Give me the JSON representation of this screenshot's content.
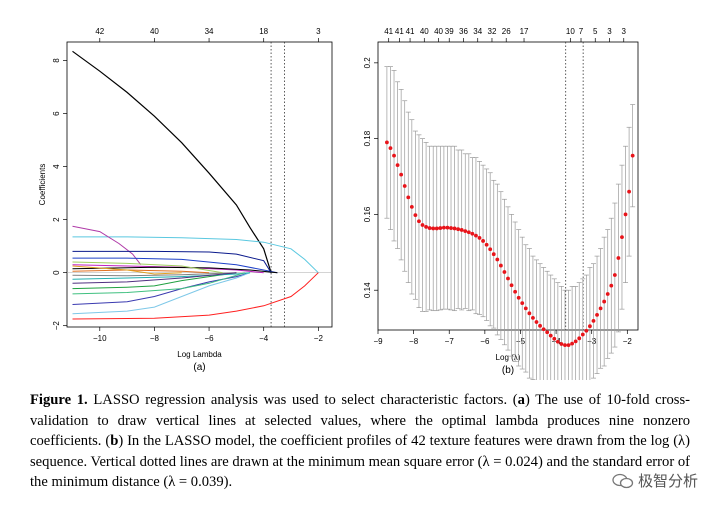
{
  "panel_a": {
    "letter": "(a)",
    "top_axis_ticks": [
      "42",
      "40",
      "34",
      "18",
      "3"
    ]
  },
  "panel_b": {
    "letter": "(b)",
    "top_axis_ticks": [
      "41",
      "41",
      "41",
      "40",
      "40",
      "39",
      "36",
      "34",
      "32",
      "26",
      "17",
      "10",
      "7",
      "5",
      "3",
      "3"
    ]
  },
  "chart_data": [
    {
      "type": "line",
      "xlabel": "Log Lambda",
      "ylabel": "Coefficients",
      "xlim": [
        -11.2,
        -1.5
      ],
      "ylim": [
        -2.05,
        8.7
      ],
      "xticks": [
        -10,
        -8,
        -6,
        -4,
        -2
      ],
      "yticks": [
        -2,
        0,
        2,
        4,
        6,
        8
      ],
      "top_axis_positions": [
        -10,
        -8,
        -6,
        -4,
        -2
      ],
      "vlines": [
        -3.73,
        -3.24
      ],
      "grid": false,
      "series": [
        {
          "color": "#000000",
          "points": [
            [
              -11,
              8.35
            ],
            [
              -10,
              7.6
            ],
            [
              -9,
              6.8
            ],
            [
              -8,
              5.9
            ],
            [
              -7,
              4.9
            ],
            [
              -6,
              3.75
            ],
            [
              -5,
              2.55
            ],
            [
              -4.5,
              1.7
            ],
            [
              -4,
              0.9
            ],
            [
              -3.73,
              0
            ]
          ]
        },
        {
          "color": "#5ac8e0",
          "points": [
            [
              -11,
              1.35
            ],
            [
              -9,
              1.35
            ],
            [
              -7,
              1.32
            ],
            [
              -5,
              1.25
            ],
            [
              -4,
              1.15
            ],
            [
              -3,
              0.9
            ],
            [
              -2.5,
              0.5
            ],
            [
              -2,
              0
            ]
          ]
        },
        {
          "color": "#b03aa8",
          "points": [
            [
              -11,
              1.75
            ],
            [
              -10,
              1.55
            ],
            [
              -9.3,
              1.1
            ],
            [
              -8.8,
              0.7
            ],
            [
              -8.5,
              0.3
            ]
          ]
        },
        {
          "color": "#0b1a8c",
          "points": [
            [
              -11,
              0.8
            ],
            [
              -8,
              0.8
            ],
            [
              -6,
              0.78
            ],
            [
              -5,
              0.7
            ],
            [
              -4,
              0.45
            ],
            [
              -3.73,
              0
            ]
          ]
        },
        {
          "color": "#ff2020",
          "points": [
            [
              -11,
              -1.75
            ],
            [
              -8,
              -1.72
            ],
            [
              -6,
              -1.6
            ],
            [
              -5,
              -1.45
            ],
            [
              -4,
              -1.25
            ],
            [
              -3,
              -0.9
            ],
            [
              -2.5,
              -0.5
            ],
            [
              -2,
              0
            ]
          ]
        },
        {
          "color": "#3a3ab0",
          "points": [
            [
              -11,
              -1.2
            ],
            [
              -9,
              -1.1
            ],
            [
              -8,
              -0.9
            ],
            [
              -7,
              -0.6
            ],
            [
              -6,
              -0.35
            ],
            [
              -5,
              -0.15
            ],
            [
              -4.5,
              0
            ]
          ]
        },
        {
          "color": "#7ec8e8",
          "points": [
            [
              -11,
              -1.55
            ],
            [
              -9,
              -1.45
            ],
            [
              -8,
              -1.3
            ],
            [
              -7,
              -0.9
            ],
            [
              -6,
              -0.5
            ],
            [
              -5,
              -0.2
            ],
            [
              -4.5,
              0
            ]
          ]
        },
        {
          "color": "#20a040",
          "points": [
            [
              -11,
              -0.6
            ],
            [
              -9,
              -0.55
            ],
            [
              -8,
              -0.5
            ],
            [
              -7,
              -0.3
            ],
            [
              -6,
              -0.15
            ],
            [
              -5,
              0
            ]
          ]
        },
        {
          "color": "#1e40c8",
          "points": [
            [
              -11,
              0.55
            ],
            [
              -9,
              0.55
            ],
            [
              -7,
              0.5
            ],
            [
              -5,
              0.3
            ],
            [
              -4,
              0.1
            ],
            [
              -3.5,
              0
            ]
          ]
        },
        {
          "color": "#c020c0",
          "points": [
            [
              -11,
              0.3
            ],
            [
              -9,
              0.25
            ],
            [
              -7,
              0.2
            ],
            [
              -5,
              0.1
            ],
            [
              -4,
              0
            ]
          ]
        },
        {
          "color": "#000000",
          "points": [
            [
              -11,
              0.15
            ],
            [
              -8,
              0.2
            ],
            [
              -6,
              0.18
            ],
            [
              -4.5,
              0.1
            ],
            [
              -3.5,
              0
            ]
          ]
        },
        {
          "color": "#20b0b0",
          "points": [
            [
              -11,
              -0.25
            ],
            [
              -9,
              -0.2
            ],
            [
              -7,
              -0.15
            ],
            [
              -5,
              -0.05
            ],
            [
              -4.5,
              0
            ]
          ]
        },
        {
          "color": "#e07020",
          "points": [
            [
              -11,
              0.05
            ],
            [
              -9,
              0.1
            ],
            [
              -7,
              0.05
            ],
            [
              -6,
              0
            ]
          ]
        },
        {
          "color": "#808080",
          "points": [
            [
              -11,
              -0.1
            ],
            [
              -9,
              -0.12
            ],
            [
              -7,
              -0.08
            ],
            [
              -5,
              0
            ]
          ]
        },
        {
          "color": "#a0d060",
          "points": [
            [
              -11,
              0.4
            ],
            [
              -9,
              0.35
            ],
            [
              -7,
              0.25
            ],
            [
              -5.5,
              0
            ]
          ]
        },
        {
          "color": "#503080",
          "points": [
            [
              -11,
              -0.4
            ],
            [
              -9,
              -0.35
            ],
            [
              -7,
              -0.2
            ],
            [
              -5,
              0
            ]
          ]
        },
        {
          "color": "#40c080",
          "points": [
            [
              -11,
              -0.8
            ],
            [
              -9,
              -0.75
            ],
            [
              -7,
              -0.6
            ],
            [
              -6,
              -0.4
            ],
            [
              -5,
              -0.1
            ],
            [
              -4.7,
              0
            ]
          ]
        },
        {
          "color": "#e0a020",
          "points": [
            [
              -11,
              0.25
            ],
            [
              -9,
              0.1
            ],
            [
              -8,
              -0.05
            ],
            [
              -7,
              0
            ]
          ]
        }
      ]
    },
    {
      "type": "scatter",
      "xlabel": "Log (λ)",
      "ylabel": "Mean-Squared Error",
      "xlim": [
        -9.0,
        -1.7
      ],
      "ylim": [
        0.1295,
        0.2055
      ],
      "xticks": [
        -9,
        -8,
        -7,
        -6,
        -5,
        -4,
        -3,
        -2
      ],
      "yticks": [
        0.14,
        0.16,
        0.18,
        0.2
      ],
      "top_axis_positions": [
        -8.7,
        -8.4,
        -8.1,
        -7.7,
        -7.3,
        -7.0,
        -6.6,
        -6.2,
        -5.8,
        -5.4,
        -4.9,
        -3.6,
        -3.3,
        -2.9,
        -2.5,
        -2.1
      ],
      "vlines": [
        -3.73,
        -3.24
      ],
      "grid": false,
      "point_color": "#e8141a",
      "points": [
        [
          -8.75,
          0.179,
          0.199
        ],
        [
          -8.65,
          0.1775,
          0.199
        ],
        [
          -8.55,
          0.1755,
          0.198
        ],
        [
          -8.45,
          0.173,
          0.195
        ],
        [
          -8.35,
          0.1705,
          0.193
        ],
        [
          -8.25,
          0.1675,
          0.19
        ],
        [
          -8.15,
          0.1645,
          0.187
        ],
        [
          -8.05,
          0.162,
          0.185
        ],
        [
          -7.95,
          0.1598,
          0.182
        ],
        [
          -7.85,
          0.1582,
          0.181
        ],
        [
          -7.75,
          0.1572,
          0.18
        ],
        [
          -7.65,
          0.1567,
          0.179
        ],
        [
          -7.55,
          0.1564,
          0.178
        ],
        [
          -7.45,
          0.1563,
          0.178
        ],
        [
          -7.35,
          0.1563,
          0.178
        ],
        [
          -7.25,
          0.1564,
          0.178
        ],
        [
          -7.15,
          0.1565,
          0.178
        ],
        [
          -7.05,
          0.1565,
          0.178
        ],
        [
          -6.95,
          0.1564,
          0.178
        ],
        [
          -6.85,
          0.1563,
          0.178
        ],
        [
          -6.75,
          0.1561,
          0.177
        ],
        [
          -6.65,
          0.1559,
          0.177
        ],
        [
          -6.55,
          0.1556,
          0.176
        ],
        [
          -6.45,
          0.1553,
          0.176
        ],
        [
          -6.35,
          0.1549,
          0.175
        ],
        [
          -6.25,
          0.1544,
          0.175
        ],
        [
          -6.15,
          0.1538,
          0.174
        ],
        [
          -6.05,
          0.153,
          0.173
        ],
        [
          -5.95,
          0.152,
          0.172
        ],
        [
          -5.85,
          0.1508,
          0.171
        ],
        [
          -5.75,
          0.1495,
          0.169
        ],
        [
          -5.65,
          0.1481,
          0.168
        ],
        [
          -5.55,
          0.1465,
          0.166
        ],
        [
          -5.45,
          0.1448,
          0.164
        ],
        [
          -5.35,
          0.1431,
          0.162
        ],
        [
          -5.25,
          0.1413,
          0.16
        ],
        [
          -5.15,
          0.1396,
          0.158
        ],
        [
          -5.05,
          0.138,
          0.156
        ],
        [
          -4.95,
          0.1366,
          0.154
        ],
        [
          -4.85,
          0.1352,
          0.152
        ],
        [
          -4.75,
          0.1339,
          0.151
        ],
        [
          -4.65,
          0.1327,
          0.149
        ],
        [
          -4.55,
          0.1316,
          0.148
        ],
        [
          -4.45,
          0.1306,
          0.147
        ],
        [
          -4.35,
          0.1297,
          0.146
        ],
        [
          -4.25,
          0.1289,
          0.145
        ],
        [
          -4.15,
          0.128,
          0.144
        ],
        [
          -4.05,
          0.1272,
          0.143
        ],
        [
          -3.95,
          0.1264,
          0.142
        ],
        [
          -3.85,
          0.1258,
          0.141
        ],
        [
          -3.75,
          0.1255,
          0.14
        ],
        [
          -3.65,
          0.1255,
          0.14
        ],
        [
          -3.55,
          0.1259,
          0.141
        ],
        [
          -3.45,
          0.1265,
          0.141
        ],
        [
          -3.35,
          0.1273,
          0.142
        ],
        [
          -3.25,
          0.1283,
          0.143
        ],
        [
          -3.15,
          0.1293,
          0.144
        ],
        [
          -3.05,
          0.1305,
          0.146
        ],
        [
          -2.95,
          0.1319,
          0.147
        ],
        [
          -2.85,
          0.1335,
          0.149
        ],
        [
          -2.75,
          0.1352,
          0.151
        ],
        [
          -2.65,
          0.137,
          0.154
        ],
        [
          -2.55,
          0.139,
          0.156
        ],
        [
          -2.45,
          0.1412,
          0.159
        ],
        [
          -2.35,
          0.144,
          0.163
        ],
        [
          -2.25,
          0.1485,
          0.168
        ],
        [
          -2.15,
          0.154,
          0.173
        ],
        [
          -2.05,
          0.16,
          0.178
        ],
        [
          -1.95,
          0.166,
          0.183
        ],
        [
          -1.85,
          0.1755,
          0.189
        ]
      ]
    }
  ],
  "caption": {
    "label": "Figure 1.",
    "s1": " LASSO regression analysis was used to select characteristic factors. (",
    "a": "a",
    "s2": ") The use of 10-fold cross-validation to draw vertical lines at selected values, where the optimal lambda produces nine nonzero coefficients. (",
    "b": "b",
    "s3": ") In the LASSO model, the coefficient profiles of 42 texture features were drawn from the log (λ) sequence. Vertical dotted lines are drawn at the minimum mean square error (λ = 0.024) and the standard error of the minimum distance (λ = 0.039)."
  },
  "watermark": {
    "text": "极智分析",
    "icon": "wechat-icon"
  }
}
